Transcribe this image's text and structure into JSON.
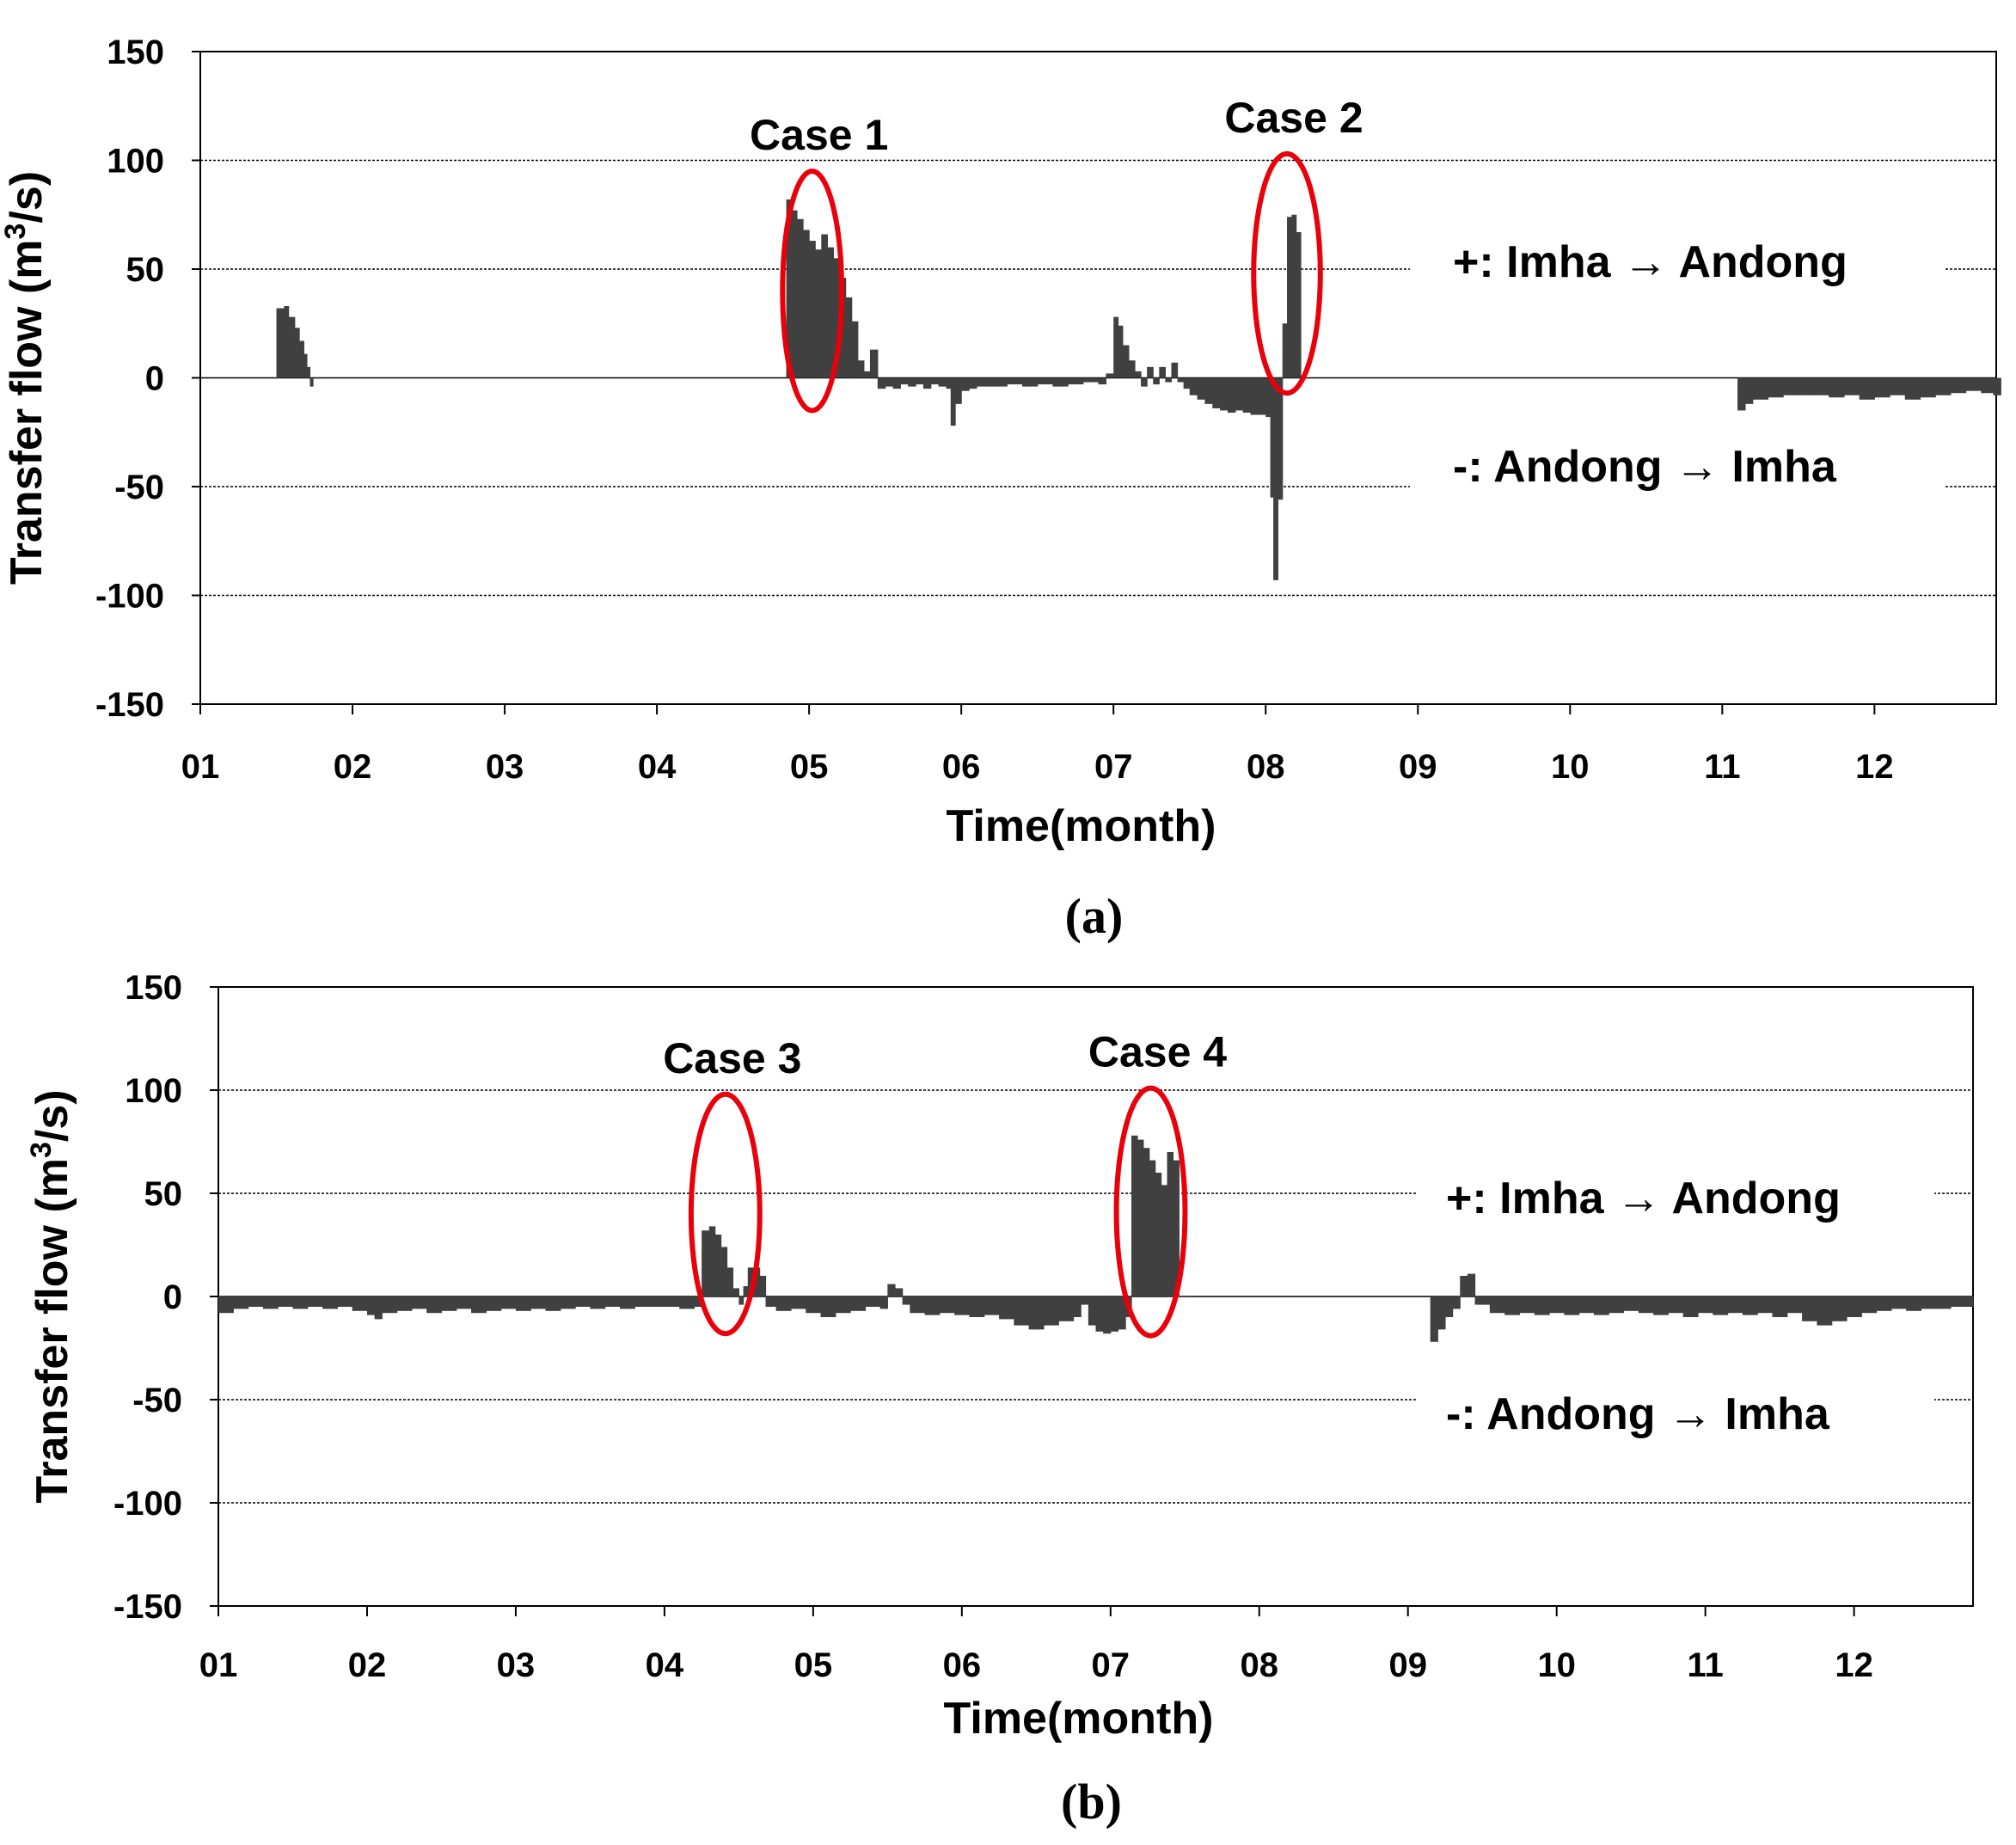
{
  "colors": {
    "bar": "#404040",
    "highlight": "#e8000b",
    "grid": "#000000"
  },
  "chart_data": [
    {
      "type": "bar",
      "panel_label": "(a)",
      "xlabel": "Time(month)",
      "ylabel_main": "Transfer flow (m",
      "ylabel_sup": "3",
      "ylabel_end": "/s)",
      "xlim": [
        1,
        12.8
      ],
      "ylim": [
        -150,
        150
      ],
      "yticks": [
        150,
        100,
        50,
        0,
        -50,
        -100,
        -150
      ],
      "ytick_labels": [
        "150",
        "100",
        "50",
        "0",
        "-50",
        "-100",
        "-150"
      ],
      "gridlines": [
        100,
        50,
        -50,
        -100
      ],
      "xtick_labels": [
        "01",
        "02",
        "03",
        "04",
        "05",
        "06",
        "07",
        "08",
        "09",
        "10",
        "11",
        "12"
      ],
      "annotations": {
        "positive": "+: Imha → Andong",
        "negative": "-: Andong → Imha"
      },
      "cases": [
        {
          "label": "Case 1",
          "center_month": 5.02,
          "center_value": 40,
          "half_width_months": 0.23,
          "half_height_value": 55
        },
        {
          "label": "Case 2",
          "center_month": 8.14,
          "center_value": 48,
          "half_width_months": 0.28,
          "half_height_value": 55
        }
      ],
      "series": [
        {
          "name": "transfer flow",
          "points": [
            [
              1.48,
              0
            ],
            [
              1.5,
              32
            ],
            [
              1.55,
              33
            ],
            [
              1.58,
              28
            ],
            [
              1.62,
              23
            ],
            [
              1.65,
              17
            ],
            [
              1.68,
              11
            ],
            [
              1.7,
              5
            ],
            [
              1.72,
              -4
            ],
            [
              1.74,
              0
            ],
            [
              4.85,
              82
            ],
            [
              4.88,
              77
            ],
            [
              4.92,
              73
            ],
            [
              4.96,
              68
            ],
            [
              5.0,
              63
            ],
            [
              5.04,
              59
            ],
            [
              5.08,
              66
            ],
            [
              5.12,
              60
            ],
            [
              5.16,
              55
            ],
            [
              5.2,
              46
            ],
            [
              5.24,
              37
            ],
            [
              5.28,
              26
            ],
            [
              5.32,
              8
            ],
            [
              5.36,
              3
            ],
            [
              5.4,
              13
            ],
            [
              5.45,
              -5
            ],
            [
              5.5,
              -4
            ],
            [
              5.55,
              -5
            ],
            [
              5.6,
              -3
            ],
            [
              5.65,
              -4
            ],
            [
              5.7,
              -3
            ],
            [
              5.75,
              -5
            ],
            [
              5.8,
              -3
            ],
            [
              5.85,
              -4
            ],
            [
              5.9,
              -5
            ],
            [
              5.93,
              -22
            ],
            [
              5.96,
              -12
            ],
            [
              6.0,
              -6
            ],
            [
              6.05,
              -5
            ],
            [
              6.1,
              -4
            ],
            [
              6.2,
              -4
            ],
            [
              6.3,
              -3
            ],
            [
              6.4,
              -4
            ],
            [
              6.5,
              -3
            ],
            [
              6.6,
              -4
            ],
            [
              6.7,
              -3
            ],
            [
              6.8,
              -2
            ],
            [
              6.9,
              -3
            ],
            [
              6.95,
              2
            ],
            [
              7.0,
              28
            ],
            [
              7.03,
              24
            ],
            [
              7.06,
              15
            ],
            [
              7.1,
              8
            ],
            [
              7.14,
              3
            ],
            [
              7.18,
              -4
            ],
            [
              7.22,
              5
            ],
            [
              7.26,
              -3
            ],
            [
              7.3,
              5
            ],
            [
              7.34,
              -2
            ],
            [
              7.38,
              7
            ],
            [
              7.42,
              -2
            ],
            [
              7.46,
              -5
            ],
            [
              7.5,
              -8
            ],
            [
              7.55,
              -10
            ],
            [
              7.6,
              -12
            ],
            [
              7.65,
              -14
            ],
            [
              7.7,
              -15
            ],
            [
              7.75,
              -16
            ],
            [
              7.8,
              -15
            ],
            [
              7.85,
              -16
            ],
            [
              7.9,
              -17
            ],
            [
              7.95,
              -17
            ],
            [
              8.0,
              -18
            ],
            [
              8.03,
              -55
            ],
            [
              8.05,
              -93
            ],
            [
              8.08,
              -56
            ],
            [
              8.11,
              25
            ],
            [
              8.14,
              74
            ],
            [
              8.17,
              75
            ],
            [
              8.2,
              67
            ],
            [
              8.23,
              0
            ],
            [
              11.1,
              -15
            ],
            [
              11.15,
              -12
            ],
            [
              11.2,
              -10
            ],
            [
              11.3,
              -9
            ],
            [
              11.4,
              -8
            ],
            [
              11.5,
              -8
            ],
            [
              11.6,
              -8
            ],
            [
              11.7,
              -9
            ],
            [
              11.8,
              -8
            ],
            [
              11.9,
              -10
            ],
            [
              12.0,
              -9
            ],
            [
              12.1,
              -8
            ],
            [
              12.2,
              -10
            ],
            [
              12.3,
              -9
            ],
            [
              12.4,
              -8
            ],
            [
              12.5,
              -7
            ],
            [
              12.6,
              -6
            ],
            [
              12.7,
              -7
            ],
            [
              12.78,
              -8
            ]
          ]
        }
      ]
    },
    {
      "type": "bar",
      "panel_label": "(b)",
      "xlabel": "Time(month)",
      "ylabel_main": "Transfer flow (m",
      "ylabel_sup": "3",
      "ylabel_end": "/s)",
      "xlim": [
        1,
        12.8
      ],
      "ylim": [
        -150,
        150
      ],
      "yticks": [
        150,
        100,
        50,
        0,
        -50,
        -100,
        -150
      ],
      "ytick_labels": [
        "150",
        "100",
        "50",
        "0",
        "-50",
        "-100",
        "-150"
      ],
      "gridlines": [
        100,
        50,
        -50,
        -100
      ],
      "xtick_labels": [
        "01",
        "02",
        "03",
        "04",
        "05",
        "06",
        "07",
        "08",
        "09",
        "10",
        "11",
        "12"
      ],
      "annotations": {
        "positive": "+: Imha → Andong",
        "negative": "-: Andong → Imha"
      },
      "cases": [
        {
          "label": "Case 3",
          "center_month": 4.41,
          "center_value": 40,
          "half_width_months": 0.3,
          "half_height_value": 58
        },
        {
          "label": "Case 4",
          "center_month": 7.27,
          "center_value": 41,
          "half_width_months": 0.3,
          "half_height_value": 60
        }
      ],
      "series": [
        {
          "name": "transfer flow",
          "points": [
            [
              1.0,
              -8
            ],
            [
              1.1,
              -6
            ],
            [
              1.2,
              -5
            ],
            [
              1.3,
              -6
            ],
            [
              1.4,
              -5
            ],
            [
              1.5,
              -6
            ],
            [
              1.6,
              -5
            ],
            [
              1.7,
              -6
            ],
            [
              1.8,
              -5
            ],
            [
              1.9,
              -7
            ],
            [
              2.0,
              -9
            ],
            [
              2.05,
              -11
            ],
            [
              2.1,
              -8
            ],
            [
              2.2,
              -7
            ],
            [
              2.3,
              -6
            ],
            [
              2.4,
              -8
            ],
            [
              2.5,
              -7
            ],
            [
              2.6,
              -6
            ],
            [
              2.7,
              -8
            ],
            [
              2.8,
              -7
            ],
            [
              2.9,
              -6
            ],
            [
              3.0,
              -7
            ],
            [
              3.1,
              -6
            ],
            [
              3.2,
              -7
            ],
            [
              3.3,
              -6
            ],
            [
              3.4,
              -5
            ],
            [
              3.5,
              -6
            ],
            [
              3.6,
              -5
            ],
            [
              3.7,
              -6
            ],
            [
              3.8,
              -5
            ],
            [
              3.9,
              -5
            ],
            [
              4.0,
              -5
            ],
            [
              4.1,
              -6
            ],
            [
              4.2,
              -5
            ],
            [
              4.25,
              32
            ],
            [
              4.3,
              34
            ],
            [
              4.34,
              30
            ],
            [
              4.38,
              24
            ],
            [
              4.42,
              14
            ],
            [
              4.46,
              4
            ],
            [
              4.5,
              -4
            ],
            [
              4.53,
              5
            ],
            [
              4.56,
              14
            ],
            [
              4.6,
              14
            ],
            [
              4.64,
              10
            ],
            [
              4.68,
              -5
            ],
            [
              4.75,
              -7
            ],
            [
              4.85,
              -6
            ],
            [
              4.95,
              -8
            ],
            [
              5.05,
              -10
            ],
            [
              5.15,
              -8
            ],
            [
              5.25,
              -7
            ],
            [
              5.35,
              -5
            ],
            [
              5.45,
              -6
            ],
            [
              5.5,
              6
            ],
            [
              5.55,
              4
            ],
            [
              5.6,
              -4
            ],
            [
              5.65,
              -8
            ],
            [
              5.75,
              -9
            ],
            [
              5.85,
              -8
            ],
            [
              5.95,
              -9
            ],
            [
              6.05,
              -10
            ],
            [
              6.15,
              -9
            ],
            [
              6.25,
              -11
            ],
            [
              6.35,
              -14
            ],
            [
              6.45,
              -16
            ],
            [
              6.55,
              -14
            ],
            [
              6.65,
              -12
            ],
            [
              6.75,
              -10
            ],
            [
              6.8,
              -4
            ],
            [
              6.85,
              -14
            ],
            [
              6.9,
              -17
            ],
            [
              6.95,
              -18
            ],
            [
              7.0,
              -17
            ],
            [
              7.05,
              -16
            ],
            [
              7.1,
              -10
            ],
            [
              7.14,
              78
            ],
            [
              7.18,
              76
            ],
            [
              7.22,
              72
            ],
            [
              7.26,
              66
            ],
            [
              7.3,
              60
            ],
            [
              7.34,
              54
            ],
            [
              7.38,
              70
            ],
            [
              7.42,
              66
            ],
            [
              7.46,
              0
            ],
            [
              9.15,
              -22
            ],
            [
              9.2,
              -16
            ],
            [
              9.25,
              -10
            ],
            [
              9.3,
              -6
            ],
            [
              9.35,
              10
            ],
            [
              9.4,
              11
            ],
            [
              9.45,
              -4
            ],
            [
              9.55,
              -8
            ],
            [
              9.65,
              -9
            ],
            [
              9.75,
              -8
            ],
            [
              9.85,
              -9
            ],
            [
              9.95,
              -8
            ],
            [
              10.05,
              -9
            ],
            [
              10.15,
              -8
            ],
            [
              10.25,
              -9
            ],
            [
              10.35,
              -8
            ],
            [
              10.45,
              -7
            ],
            [
              10.55,
              -8
            ],
            [
              10.65,
              -9
            ],
            [
              10.75,
              -8
            ],
            [
              10.85,
              -10
            ],
            [
              10.95,
              -8
            ],
            [
              11.05,
              -9
            ],
            [
              11.15,
              -8
            ],
            [
              11.25,
              -9
            ],
            [
              11.35,
              -8
            ],
            [
              11.45,
              -10
            ],
            [
              11.55,
              -8
            ],
            [
              11.65,
              -12
            ],
            [
              11.75,
              -14
            ],
            [
              11.85,
              -12
            ],
            [
              11.95,
              -10
            ],
            [
              12.05,
              -8
            ],
            [
              12.15,
              -7
            ],
            [
              12.25,
              -6
            ],
            [
              12.35,
              -7
            ],
            [
              12.45,
              -6
            ],
            [
              12.55,
              -6
            ],
            [
              12.65,
              -5
            ],
            [
              12.75,
              -5
            ]
          ]
        }
      ]
    }
  ]
}
